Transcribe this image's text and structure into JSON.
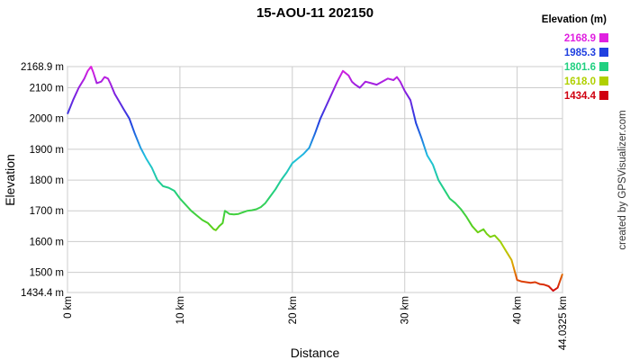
{
  "chart_data": {
    "type": "line",
    "title": "15-AOU-11 202150",
    "xlabel": "Distance",
    "ylabel": "Elevation",
    "credit": "created by GPSVisualizer.com",
    "xlim": [
      0,
      44.0325
    ],
    "ylim": [
      1434.4,
      2168.9
    ],
    "x_ticks": [
      {
        "value": 0,
        "label": "0 km"
      },
      {
        "value": 10,
        "label": "10 km"
      },
      {
        "value": 20,
        "label": "20 km"
      },
      {
        "value": 30,
        "label": "30 km"
      },
      {
        "value": 40,
        "label": "40 km"
      },
      {
        "value": 44.0325,
        "label": "44.0325 km"
      }
    ],
    "y_ticks": [
      {
        "value": 1434.4,
        "label": "1434.4 m"
      },
      {
        "value": 1500,
        "label": "1500 m"
      },
      {
        "value": 1600,
        "label": "1600 m"
      },
      {
        "value": 1700,
        "label": "1700 m"
      },
      {
        "value": 1800,
        "label": "1800 m"
      },
      {
        "value": 1900,
        "label": "1900 m"
      },
      {
        "value": 2000,
        "label": "2000 m"
      },
      {
        "value": 2100,
        "label": "2100 m"
      },
      {
        "value": 2168.9,
        "label": "2168.9 m"
      }
    ],
    "grid": true,
    "legend": {
      "title": "Elevation (m)",
      "placement": "top-right",
      "entries": [
        {
          "value": "2168.9",
          "color": "#e020e0"
        },
        {
          "value": "1985.3",
          "color": "#2040e0"
        },
        {
          "value": "1801.6",
          "color": "#20d080"
        },
        {
          "value": "1618.0",
          "color": "#b0d000"
        },
        {
          "value": "1434.4",
          "color": "#d00010"
        }
      ]
    },
    "series": [
      {
        "x": [
          0,
          0.5,
          1,
          1.5,
          1.8,
          2.1,
          2.3,
          2.6,
          3.0,
          3.3,
          3.6,
          3.8,
          4.2,
          4.6,
          5.0,
          5.5,
          6,
          6.5,
          7,
          7.5,
          8,
          8.5,
          9,
          9.5,
          10,
          10.5,
          11,
          11.5,
          12,
          12.5,
          13,
          13.2,
          13.5,
          13.8,
          14.0,
          14.2,
          14.4,
          14.8,
          15.2,
          15.6,
          16,
          16.4,
          16.8,
          17.2,
          17.6,
          18,
          18.5,
          19,
          19.5,
          20,
          20.5,
          21,
          21.5,
          22,
          22.5,
          23,
          23.5,
          24,
          24.5,
          25,
          25.3,
          25.6,
          26,
          26.5,
          27,
          27.5,
          28,
          28.5,
          29,
          29.3,
          29.6,
          30,
          30.5,
          31,
          31.5,
          32,
          32.5,
          33,
          33.5,
          34,
          34.5,
          35,
          35.5,
          36,
          36.5,
          37,
          37.3,
          37.6,
          38,
          38.5,
          39,
          39.5,
          40,
          40.4,
          40.8,
          41.2,
          41.6,
          42,
          42.4,
          42.8,
          43.2,
          43.6,
          44.0325
        ],
        "y": [
          2015,
          2060,
          2100,
          2130,
          2155,
          2168.9,
          2150,
          2115,
          2120,
          2135,
          2130,
          2115,
          2080,
          2055,
          2030,
          2000,
          1950,
          1905,
          1870,
          1840,
          1800,
          1780,
          1775,
          1765,
          1740,
          1720,
          1700,
          1685,
          1670,
          1660,
          1640,
          1637,
          1650,
          1660,
          1700,
          1695,
          1690,
          1688,
          1690,
          1695,
          1700,
          1702,
          1705,
          1712,
          1725,
          1745,
          1770,
          1800,
          1825,
          1855,
          1870,
          1885,
          1905,
          1950,
          2000,
          2040,
          2080,
          2120,
          2155,
          2140,
          2120,
          2110,
          2100,
          2120,
          2115,
          2110,
          2120,
          2130,
          2125,
          2135,
          2120,
          2090,
          2060,
          1985,
          1935,
          1880,
          1850,
          1800,
          1770,
          1740,
          1725,
          1705,
          1680,
          1650,
          1630,
          1640,
          1625,
          1615,
          1620,
          1600,
          1570,
          1540,
          1475,
          1470,
          1468,
          1466,
          1468,
          1462,
          1460,
          1455,
          1440,
          1450,
          1495
        ]
      }
    ]
  }
}
